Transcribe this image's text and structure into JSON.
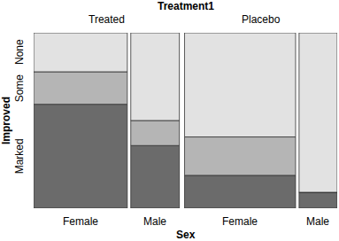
{
  "chart_data": {
    "type": "mosaic",
    "title": "Treatment1",
    "x_label": "Sex",
    "y_label": "Improved",
    "groups": [
      {
        "name": "Treated",
        "categories": [
          "Female",
          "Male"
        ]
      },
      {
        "name": "Placebo",
        "categories": [
          "Female",
          "Male"
        ]
      }
    ],
    "series": [
      {
        "name": "Marked",
        "color": "#6b6b6b",
        "values": [
          16,
          5,
          6,
          1
        ]
      },
      {
        "name": "Some",
        "color": "#b5b5b5",
        "values": [
          5,
          2,
          7,
          0
        ]
      },
      {
        "name": "None",
        "color": "#e2e2e2",
        "values": [
          6,
          7,
          19,
          10
        ]
      }
    ]
  }
}
